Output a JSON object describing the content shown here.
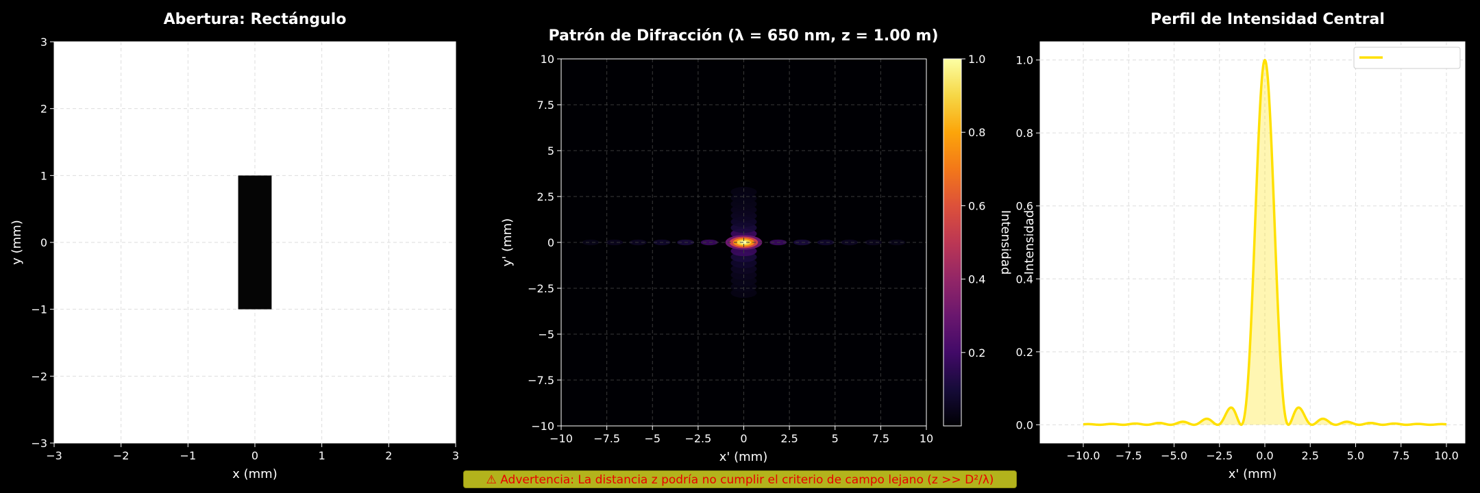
{
  "charts": [
    {
      "type": "heatmap",
      "title": "Abertura: Rectángulo",
      "xlabel": "x (mm)",
      "ylabel": "y (mm)",
      "xlim": [
        -3,
        3
      ],
      "ylim": [
        -3,
        3
      ],
      "xticks": [
        -3,
        -2,
        -1,
        0,
        1,
        2,
        3
      ],
      "yticks": [
        -3,
        -2,
        -1,
        0,
        1,
        2,
        3
      ],
      "background_color": "#ffffff",
      "aperture": {
        "shape": "rectangle",
        "x_range": [
          -0.25,
          0.25
        ],
        "y_range": [
          -1,
          1
        ],
        "color": "#050505"
      },
      "grid": true
    },
    {
      "type": "heatmap",
      "title": "Patrón de Difracción (λ = 650 nm, z = 1.00 m)",
      "xlabel": "x' (mm)",
      "ylabel": "y' (mm)",
      "xlim": [
        -10,
        10
      ],
      "ylim": [
        -10,
        10
      ],
      "xticks": [
        -10,
        -7.5,
        -5,
        -2.5,
        0,
        2.5,
        5,
        7.5,
        10
      ],
      "yticks": [
        -10,
        -7.5,
        -5,
        -2.5,
        0,
        2.5,
        5,
        7.5,
        10
      ],
      "colormap": "inferno",
      "colorbar": {
        "label": "Intensidad",
        "range": [
          0,
          1
        ],
        "ticks": [
          0.2,
          0.4,
          0.6,
          0.8,
          1.0
        ]
      },
      "pattern": {
        "x_first_zero": 1.3,
        "y_first_zero": 0.325,
        "peak": 1.0
      },
      "grid": true
    },
    {
      "type": "line",
      "title": "Perfil de Intensidad Central",
      "xlabel": "x' (mm)",
      "ylabel": "Intensidad",
      "xlim": [
        -10,
        10
      ],
      "ylim": [
        0,
        1
      ],
      "xticks": [
        -10,
        -7.5,
        -5,
        -2.5,
        0,
        2.5,
        5,
        7.5,
        10
      ],
      "yticks": [
        0,
        0.2,
        0.4,
        0.6,
        0.8,
        1.0
      ],
      "series": [
        {
          "color": "#ffe000",
          "fill": true,
          "first_zero": 1.3
        }
      ],
      "legend": "top-right",
      "grid": true
    }
  ],
  "warning": "⚠ Advertencia: La distancia z podría no cumplir el criterio de campo lejano (z >> D²/λ)"
}
